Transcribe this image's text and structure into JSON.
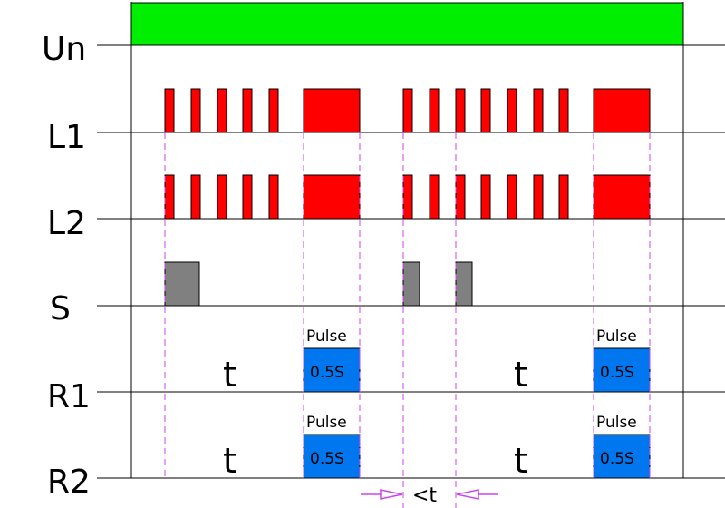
{
  "rows": [
    {
      "id": "un",
      "label": "Un"
    },
    {
      "id": "l1",
      "label": "L1"
    },
    {
      "id": "l2",
      "label": "L2"
    },
    {
      "id": "s",
      "label": "S"
    },
    {
      "id": "r1",
      "label": "R1"
    },
    {
      "id": "r2",
      "label": "R2"
    }
  ],
  "annotations": {
    "delay": "t",
    "pulse": "Pulse",
    "pulse_duration": "0.5S",
    "interval": "<t"
  },
  "colors": {
    "supply": "#00ee00",
    "lamp": "#ff0000",
    "switch": "#808080",
    "relay": "#0077ee",
    "guide": "#cc44ee",
    "axis": "#000000"
  }
}
